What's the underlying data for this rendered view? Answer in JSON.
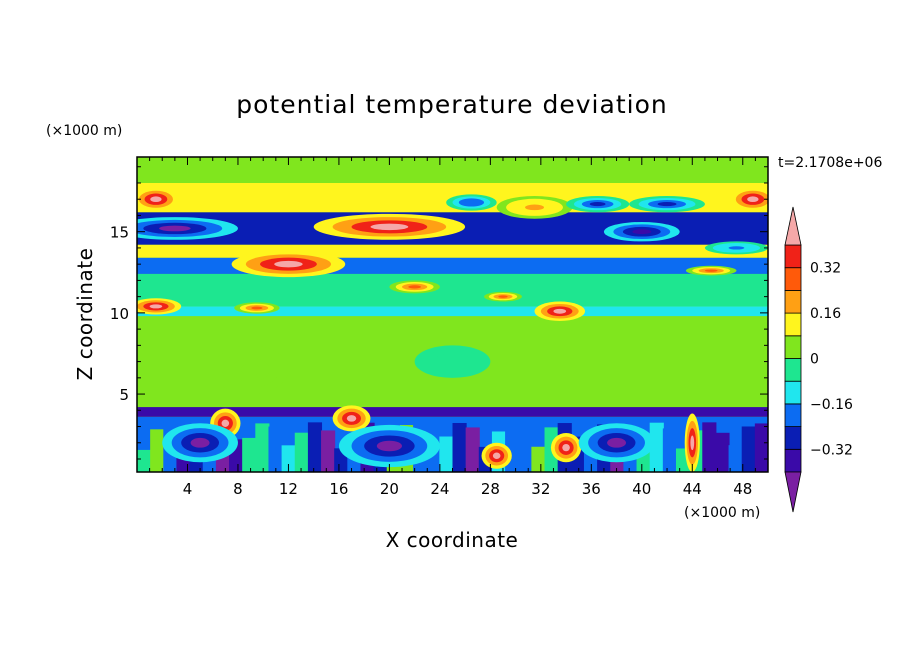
{
  "chart_data": {
    "type": "heatmap",
    "title": "potential temperature deviation",
    "xlabel": "X coordinate",
    "ylabel": "Z coordinate",
    "x_unit_label": "(×1000 m)",
    "y_unit_label": "(×1000 m)",
    "time_label": "t=2.1708e+06",
    "xlim": [
      0,
      50
    ],
    "ylim": [
      0.2,
      19.6
    ],
    "x_ticks": [
      4,
      8,
      12,
      16,
      20,
      24,
      28,
      32,
      36,
      40,
      44,
      48
    ],
    "y_ticks": [
      5,
      10,
      15
    ],
    "colorbar": {
      "levels": [
        -0.4,
        -0.32,
        -0.24,
        -0.16,
        -0.08,
        0,
        0.08,
        0.16,
        0.24,
        0.32,
        0.4
      ],
      "tick_labels": [
        "0.32",
        "0.16",
        "0",
        "−0.16",
        "−0.32"
      ],
      "tick_values": [
        0.32,
        0.16,
        0,
        -0.16,
        -0.32
      ],
      "colors": [
        "#7a1fa2",
        "#3a0aa8",
        "#0a1eb4",
        "#0c6cf2",
        "#20e6ee",
        "#1ee690",
        "#80e61e",
        "#fff51e",
        "#ffa014",
        "#ff5a0a",
        "#f02218",
        "#f5a8a8"
      ]
    },
    "bands": [
      {
        "z": [
          0.2,
          3.6
        ],
        "value": -0.2,
        "pattern": "turbulent"
      },
      {
        "z": [
          3.6,
          4.2
        ],
        "value": -0.34
      },
      {
        "z": [
          4.2,
          9.8
        ],
        "value": 0.0
      },
      {
        "z": [
          9.8,
          10.4
        ],
        "value": -0.12
      },
      {
        "z": [
          10.4,
          12.4
        ],
        "value": -0.04
      },
      {
        "z": [
          12.4,
          13.4
        ],
        "value": -0.2
      },
      {
        "z": [
          13.4,
          14.2
        ],
        "value": 0.1
      },
      {
        "z": [
          14.2,
          16.2
        ],
        "value": -0.3
      },
      {
        "z": [
          16.2,
          18.0
        ],
        "value": 0.12
      },
      {
        "z": [
          18.0,
          19.6
        ],
        "value": 0.04
      }
    ],
    "blobs": [
      {
        "x": 20.0,
        "z": 15.3,
        "rx": 6.0,
        "rz": 0.8,
        "value": 0.45
      },
      {
        "x": 3.0,
        "z": 15.2,
        "rx": 5.0,
        "rz": 0.7,
        "value": -0.42
      },
      {
        "x": 12.0,
        "z": 13.0,
        "rx": 4.5,
        "rz": 0.8,
        "value": 0.45
      },
      {
        "x": 1.5,
        "z": 17.0,
        "rx": 1.8,
        "rz": 0.7,
        "value": 0.45
      },
      {
        "x": 48.8,
        "z": 17.0,
        "rx": 1.8,
        "rz": 0.7,
        "value": 0.45
      },
      {
        "x": 31.5,
        "z": 16.5,
        "rx": 3.0,
        "rz": 0.7,
        "value": 0.2
      },
      {
        "x": 40.0,
        "z": 15.0,
        "rx": 3.0,
        "rz": 0.6,
        "value": -0.34
      },
      {
        "x": 36.5,
        "z": 16.7,
        "rx": 2.5,
        "rz": 0.5,
        "value": -0.3
      },
      {
        "x": 42.0,
        "z": 16.7,
        "rx": 3.0,
        "rz": 0.5,
        "value": -0.3
      },
      {
        "x": 26.5,
        "z": 16.8,
        "rx": 2.0,
        "rz": 0.5,
        "value": -0.22
      },
      {
        "x": 1.5,
        "z": 10.4,
        "rx": 2.0,
        "rz": 0.5,
        "value": 0.45
      },
      {
        "x": 9.5,
        "z": 10.3,
        "rx": 1.8,
        "rz": 0.35,
        "value": 0.3
      },
      {
        "x": 22.0,
        "z": 11.6,
        "rx": 2.0,
        "rz": 0.4,
        "value": 0.3
      },
      {
        "x": 33.5,
        "z": 10.1,
        "rx": 2.0,
        "rz": 0.6,
        "value": 0.45
      },
      {
        "x": 29.0,
        "z": 11.0,
        "rx": 1.5,
        "rz": 0.3,
        "value": 0.25
      },
      {
        "x": 45.5,
        "z": 12.6,
        "rx": 2.0,
        "rz": 0.3,
        "value": 0.3
      },
      {
        "x": 47.5,
        "z": 14.0,
        "rx": 2.5,
        "rz": 0.4,
        "value": -0.2
      },
      {
        "x": 7.0,
        "z": 3.2,
        "rx": 1.2,
        "rz": 0.9,
        "value": 0.45
      },
      {
        "x": 17.0,
        "z": 3.5,
        "rx": 1.5,
        "rz": 0.8,
        "value": 0.45
      },
      {
        "x": 28.5,
        "z": 1.2,
        "rx": 1.2,
        "rz": 0.8,
        "value": 0.45
      },
      {
        "x": 34.0,
        "z": 1.7,
        "rx": 1.2,
        "rz": 0.9,
        "value": 0.45
      },
      {
        "x": 44.0,
        "z": 2.0,
        "rx": 0.6,
        "rz": 1.8,
        "value": 0.45
      },
      {
        "x": 20.0,
        "z": 1.8,
        "rx": 4.0,
        "rz": 1.3,
        "value": -0.42
      },
      {
        "x": 5.0,
        "z": 2.0,
        "rx": 3.0,
        "rz": 1.2,
        "value": -0.42
      },
      {
        "x": 38.0,
        "z": 2.0,
        "rx": 3.0,
        "rz": 1.2,
        "value": -0.42
      },
      {
        "x": 25.0,
        "z": 7.0,
        "rx": 3.0,
        "rz": 1.0,
        "value": -0.05
      },
      {
        "x": 9.0,
        "z": 6.5,
        "rx": 3.0,
        "rz": 1.5,
        "value": 0.04
      }
    ]
  }
}
